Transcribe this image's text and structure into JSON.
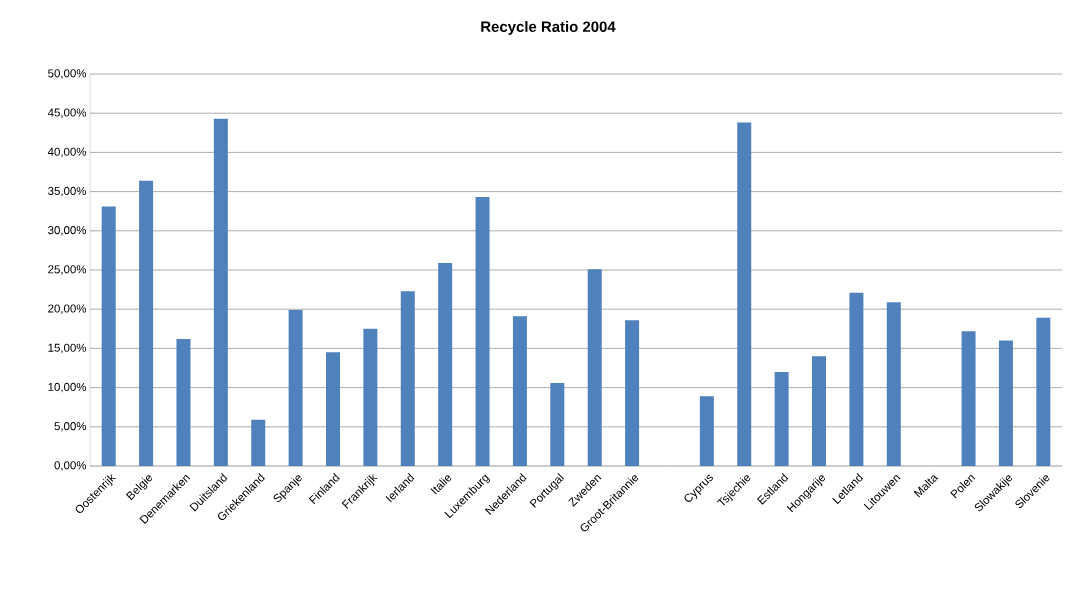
{
  "chart_data": {
    "type": "bar",
    "title": "Recycle Ratio 2004",
    "categories": [
      "Oostenrijk",
      "Belgie",
      "Denemarken",
      "Duitsland",
      "Griekenland",
      "Spanje",
      "Finland",
      "Frankrijk",
      "Ierland",
      "Italie",
      "Luxemburg",
      "Nederland",
      "Portugal",
      "Zweden",
      "Groot-Britannie",
      null,
      "Cyprus",
      "Tsjechie",
      "Estland",
      "Hongarije",
      "Letland",
      "Litouwen",
      "Malta",
      "Polen",
      "Slowakije",
      "Slovenie"
    ],
    "values": [
      33.1,
      36.4,
      16.2,
      44.3,
      5.9,
      19.9,
      14.5,
      17.5,
      22.3,
      25.9,
      34.3,
      19.1,
      10.6,
      25.1,
      18.6,
      null,
      8.9,
      43.8,
      12.0,
      14.0,
      22.1,
      20.9,
      null,
      17.2,
      16.0,
      18.9
    ],
    "color": "#4f81bd",
    "ylim": [
      0,
      50
    ],
    "yticks": [
      {
        "value": 0,
        "label": "0,00%"
      },
      {
        "value": 5,
        "label": "5,00%"
      },
      {
        "value": 10,
        "label": "10,00%"
      },
      {
        "value": 15,
        "label": "15,00%"
      },
      {
        "value": 20,
        "label": "20,00%"
      },
      {
        "value": 25,
        "label": "25,00%"
      },
      {
        "value": 30,
        "label": "30,00%"
      },
      {
        "value": 35,
        "label": "35,00%"
      },
      {
        "value": 40,
        "label": "40,00%"
      },
      {
        "value": 45,
        "label": "45,00%"
      },
      {
        "value": 50,
        "label": "50,00%"
      }
    ],
    "grid": "y"
  }
}
